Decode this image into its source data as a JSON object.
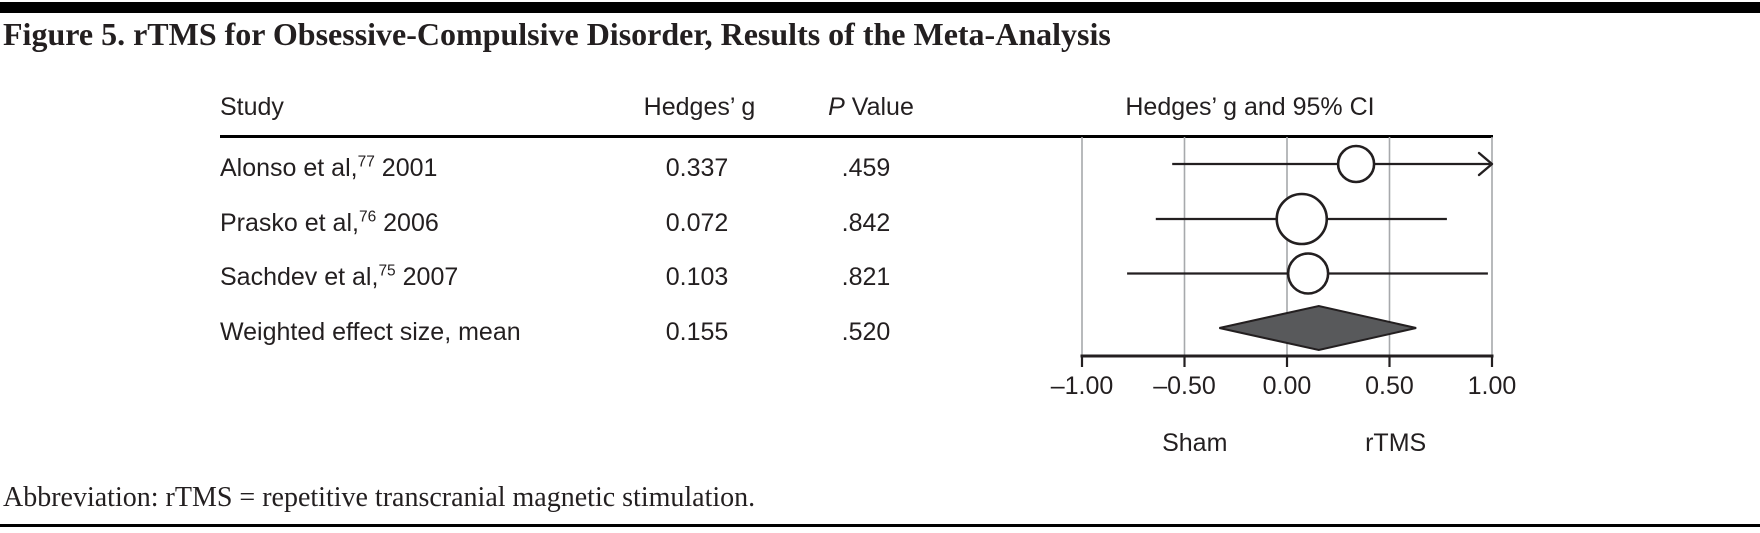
{
  "figure": {
    "title": "Figure 5. rTMS for Obsessive-Compulsive Disorder, Results of the Meta-Analysis",
    "abbreviation_note": "Abbreviation: rTMS = repetitive transcranial magnetic stimulation."
  },
  "table": {
    "headers": {
      "study": "Study",
      "hedges_g": "Hedges’ g",
      "p_italic": "P",
      "p_rest": " Value",
      "plot": "Hedges’ g and 95% CI"
    },
    "rows": [
      {
        "study_prefix": "Alonso et al,",
        "study_sup": "77",
        "study_suffix": " 2001",
        "hedges_g": "0.337",
        "p_value": ".459"
      },
      {
        "study_prefix": "Prasko et al,",
        "study_sup": "76",
        "study_suffix": " 2006",
        "hedges_g": "0.072",
        "p_value": ".842"
      },
      {
        "study_prefix": "Sachdev et al,",
        "study_sup": "75",
        "study_suffix": " 2007",
        "hedges_g": "0.103",
        "p_value": ".821"
      },
      {
        "study_prefix": "Weighted effect size, mean",
        "study_sup": "",
        "study_suffix": "",
        "hedges_g": "0.155",
        "p_value": ".520"
      }
    ]
  },
  "chart_data": {
    "type": "forest",
    "title": "Hedges’ g and 95% CI",
    "xlim": [
      -1.0,
      1.0
    ],
    "xticks": [
      -1.0,
      -0.5,
      0.0,
      0.5,
      1.0
    ],
    "xtick_labels": [
      "–1.00",
      "–0.50",
      "0.00",
      "0.50",
      "1.00"
    ],
    "axis_annotations": [
      {
        "label": "Sham",
        "x": -0.45
      },
      {
        "label": "rTMS",
        "x": 0.53
      }
    ],
    "studies": [
      {
        "name": "Alonso et al, 2001",
        "g": 0.337,
        "p": 0.459,
        "ci_lower": -0.56,
        "ci_upper": 1.0,
        "upper_arrow": true,
        "marker_radius": 18
      },
      {
        "name": "Prasko et al, 2006",
        "g": 0.072,
        "p": 0.842,
        "ci_lower": -0.64,
        "ci_upper": 0.78,
        "upper_arrow": false,
        "marker_radius": 25
      },
      {
        "name": "Sachdev et al, 2007",
        "g": 0.103,
        "p": 0.821,
        "ci_lower": -0.78,
        "ci_upper": 0.98,
        "upper_arrow": false,
        "marker_radius": 20
      }
    ],
    "summary": {
      "name": "Weighted effect size, mean",
      "g": 0.155,
      "p": 0.52,
      "ci_lower": -0.33,
      "ci_upper": 0.63
    },
    "grid": "vertical-gridlines-at-ticks",
    "legend_position": "none"
  },
  "colors": {
    "text": "#231f20",
    "gridline": "#a7a9ac",
    "diamond_fill": "#58595b",
    "marker_fill": "#ffffff",
    "rule": "#000000"
  }
}
